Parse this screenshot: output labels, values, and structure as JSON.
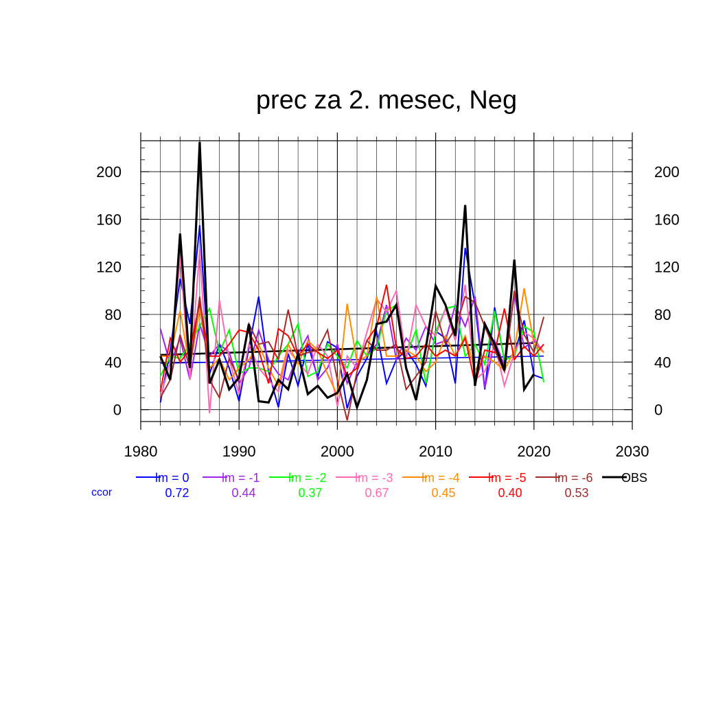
{
  "chart_data": {
    "type": "line",
    "title": "prec za 2. mesec, Neg",
    "xlim": [
      1980,
      2030
    ],
    "ylim": [
      -10,
      226
    ],
    "x_ticks": [
      "1980",
      "1990",
      "2000",
      "2010",
      "2020",
      "2030"
    ],
    "y_ticks": [
      "0",
      "40",
      "80",
      "120",
      "160",
      "200"
    ],
    "grid": true,
    "legend_placement": "bottom",
    "ccor_label": "ccor",
    "x": [
      1982,
      1983,
      1984,
      1985,
      1986,
      1987,
      1988,
      1989,
      1990,
      1991,
      1992,
      1993,
      1994,
      1995,
      1996,
      1997,
      1998,
      1999,
      2000,
      2001,
      2002,
      2003,
      2004,
      2005,
      2006,
      2007,
      2008,
      2009,
      2010,
      2011,
      2012,
      2013,
      2014,
      2015,
      2016,
      2017,
      2018,
      2019,
      2020,
      2021
    ],
    "series": [
      {
        "name": "lm = 0",
        "ccor": "0.72",
        "color": "#0000ff",
        "values": [
          6,
          50,
          110,
          72,
          155,
          30,
          55,
          35,
          7,
          52,
          95,
          32,
          2,
          47,
          20,
          55,
          27,
          57,
          52,
          1,
          28,
          43,
          65,
          22,
          42,
          50,
          38,
          20,
          66,
          60,
          22,
          136,
          88,
          17,
          86,
          41,
          47,
          75,
          29,
          26
        ]
      },
      {
        "name": "lm = -1",
        "ccor": "0.44",
        "color": "#a020f0",
        "values": [
          68,
          38,
          60,
          25,
          72,
          45,
          55,
          48,
          22,
          35,
          67,
          42,
          30,
          25,
          47,
          62,
          25,
          35,
          55,
          22,
          40,
          45,
          55,
          88,
          42,
          60,
          50,
          70,
          55,
          58,
          88,
          70,
          95,
          18,
          58,
          37,
          97,
          52,
          58,
          48
        ]
      },
      {
        "name": "lm = -2",
        "ccor": "0.37",
        "color": "#00ff00",
        "values": [
          28,
          45,
          43,
          55,
          70,
          85,
          48,
          67,
          30,
          35,
          35,
          32,
          45,
          55,
          72,
          28,
          32,
          55,
          45,
          35,
          58,
          45,
          52,
          83,
          88,
          45,
          67,
          22,
          65,
          85,
          87,
          45,
          55,
          38,
          83,
          42,
          45,
          70,
          65,
          23
        ]
      },
      {
        "name": "lm = -3",
        "ccor": "0.67",
        "color": "#ff69b4",
        "values": [
          10,
          40,
          128,
          25,
          135,
          -3,
          92,
          42,
          13,
          55,
          35,
          25,
          15,
          50,
          40,
          30,
          55,
          45,
          3,
          45,
          35,
          65,
          93,
          82,
          100,
          42,
          88,
          70,
          62,
          85,
          58,
          105,
          25,
          32,
          55,
          20,
          48,
          65,
          60,
          48
        ]
      },
      {
        "name": "lm = -4",
        "ccor": "0.45",
        "color": "#ff8c00",
        "values": [
          45,
          45,
          83,
          35,
          85,
          35,
          43,
          25,
          35,
          42,
          55,
          35,
          20,
          55,
          38,
          58,
          50,
          30,
          12,
          89,
          40,
          45,
          95,
          45,
          45,
          50,
          45,
          32,
          40,
          62,
          45,
          62,
          33,
          45,
          40,
          33,
          50,
          102,
          55,
          48
        ]
      },
      {
        "name": "lm = -5",
        "ccor": "0.40",
        "color": "#ff0000",
        "values": [
          15,
          60,
          40,
          50,
          90,
          45,
          45,
          55,
          67,
          65,
          50,
          22,
          68,
          62,
          45,
          55,
          48,
          43,
          50,
          28,
          35,
          58,
          70,
          105,
          52,
          43,
          45,
          55,
          45,
          50,
          45,
          60,
          22,
          50,
          48,
          85,
          42,
          53,
          45,
          55
        ]
      },
      {
        "name": "lm = -6",
        "ccor": "0.53",
        "color": "#a52a2a",
        "values": [
          10,
          25,
          63,
          35,
          95,
          25,
          10,
          43,
          25,
          72,
          55,
          57,
          42,
          84,
          45,
          48,
          50,
          67,
          25,
          -9,
          32,
          58,
          50,
          50,
          55,
          17,
          28,
          40,
          83,
          55,
          68,
          95,
          90,
          70,
          50,
          32,
          100,
          63,
          48,
          78
        ]
      },
      {
        "name": "OBS",
        "ccor": "",
        "color": "#000000",
        "values": [
          45,
          25,
          148,
          35,
          225,
          22,
          42,
          17,
          27,
          72,
          7,
          6,
          25,
          17,
          47,
          13,
          20,
          10,
          14,
          30,
          2,
          25,
          72,
          74,
          88,
          35,
          8,
          52,
          104,
          88,
          62,
          172,
          20,
          72,
          55,
          33,
          126,
          17,
          30,
          null
        ]
      }
    ],
    "trends": [
      {
        "name": "lm = 0",
        "color": "#0000ff",
        "start": [
          1982,
          39
        ],
        "end": [
          2021,
          45
        ]
      },
      {
        "name": "OBS",
        "color": "#000000",
        "start": [
          1982,
          46
        ],
        "end": [
          2020,
          56
        ]
      }
    ]
  }
}
